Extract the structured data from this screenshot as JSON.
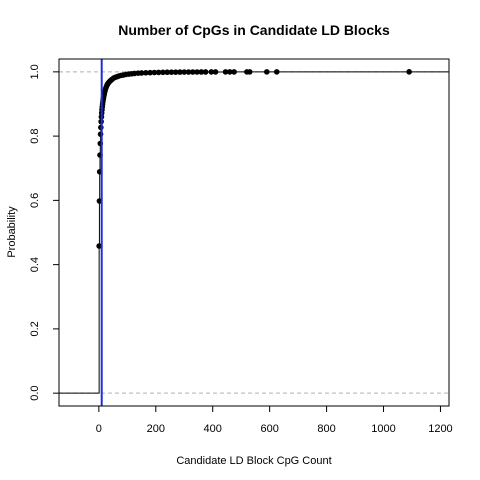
{
  "chart_data": {
    "type": "scatter",
    "title": "Number of CpGs in Candidate LD Blocks",
    "xlabel": "Candidate LD Block CpG Count",
    "ylabel": "Probability",
    "xlim": [
      -140,
      1230
    ],
    "ylim": [
      -0.04,
      1.04
    ],
    "xticks": [
      0,
      200,
      400,
      600,
      800,
      1000,
      1200
    ],
    "yticks": [
      0.0,
      0.2,
      0.4,
      0.6,
      0.8,
      1.0
    ],
    "hlines": [
      0,
      1
    ],
    "vline": {
      "x": 10,
      "color": "#1f2fd6"
    },
    "point_color": "#000000",
    "points": [
      [
        1,
        0.458
      ],
      [
        2,
        0.598
      ],
      [
        3,
        0.689
      ],
      [
        4,
        0.741
      ],
      [
        5,
        0.777
      ],
      [
        6,
        0.806
      ],
      [
        7,
        0.827
      ],
      [
        8,
        0.845
      ],
      [
        9,
        0.86
      ],
      [
        10,
        0.872
      ],
      [
        11,
        0.882
      ],
      [
        12,
        0.891
      ],
      [
        13,
        0.899
      ],
      [
        14,
        0.906
      ],
      [
        15,
        0.913
      ],
      [
        16,
        0.918
      ],
      [
        17,
        0.923
      ],
      [
        18,
        0.928
      ],
      [
        19,
        0.932
      ],
      [
        20,
        0.936
      ],
      [
        22,
        0.942
      ],
      [
        24,
        0.948
      ],
      [
        26,
        0.953
      ],
      [
        28,
        0.957
      ],
      [
        30,
        0.961
      ],
      [
        33,
        0.965
      ],
      [
        36,
        0.968
      ],
      [
        40,
        0.972
      ],
      [
        44,
        0.975
      ],
      [
        48,
        0.978
      ],
      [
        53,
        0.981
      ],
      [
        58,
        0.983
      ],
      [
        64,
        0.985
      ],
      [
        70,
        0.987
      ],
      [
        78,
        0.989
      ],
      [
        86,
        0.99
      ],
      [
        95,
        0.992
      ],
      [
        105,
        0.993
      ],
      [
        115,
        0.994
      ],
      [
        125,
        0.995
      ],
      [
        138,
        0.996
      ],
      [
        150,
        0.9965
      ],
      [
        165,
        0.997
      ],
      [
        180,
        0.9975
      ],
      [
        195,
        0.998
      ],
      [
        210,
        0.9983
      ],
      [
        225,
        0.9986
      ],
      [
        240,
        0.9988
      ],
      [
        255,
        0.999
      ],
      [
        270,
        0.9991
      ],
      [
        285,
        0.9992
      ],
      [
        300,
        0.9993
      ],
      [
        315,
        0.9994
      ],
      [
        330,
        0.9995
      ],
      [
        345,
        0.9995
      ],
      [
        360,
        0.9996
      ],
      [
        375,
        0.9996
      ],
      [
        395,
        0.9997
      ],
      [
        410,
        0.9997
      ],
      [
        445,
        0.9998
      ],
      [
        460,
        0.9998
      ],
      [
        475,
        0.9998
      ],
      [
        520,
        0.9999
      ],
      [
        530,
        0.9999
      ],
      [
        590,
        0.9999
      ],
      [
        625,
        0.9999
      ],
      [
        1090,
        1.0
      ]
    ]
  }
}
